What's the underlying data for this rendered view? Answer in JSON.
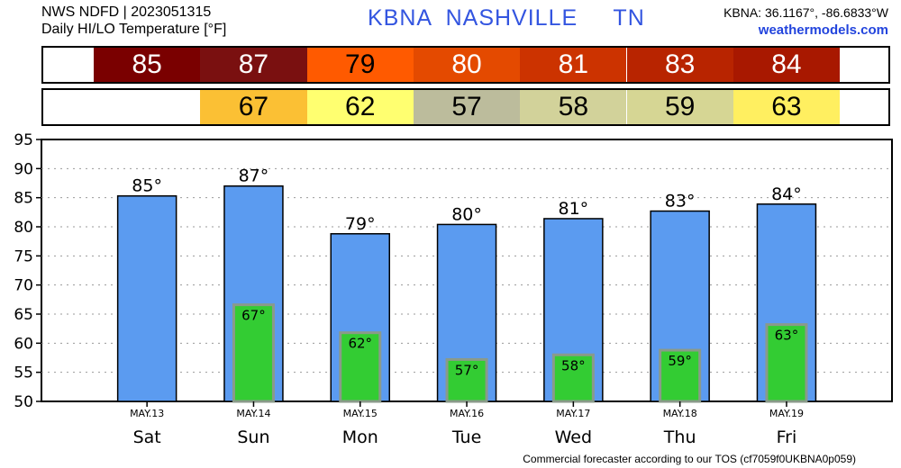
{
  "header": {
    "line1": "NWS NDFD | 2023051315",
    "line2": "Daily HI/LO Temperature [°F]",
    "station": "KBNA  NASHVILLE     TN",
    "coords": "KBNA: 36.1167°, -86.6833°W",
    "site": "weathermodels.com"
  },
  "footer": "Commercial forecaster according to our TOS (cf7059f0UKBNA0p059)",
  "strips": {
    "hi": [
      {
        "value": "85",
        "color": "#7a0000",
        "text_color": "#ffffff"
      },
      {
        "value": "87",
        "color": "#7a1010",
        "text_color": "#ffffff"
      },
      {
        "value": "79",
        "color": "#ff5a00",
        "text_color": "#000000"
      },
      {
        "value": "80",
        "color": "#e44a00",
        "text_color": "#ffffff"
      },
      {
        "value": "81",
        "color": "#cc3300",
        "text_color": "#ffffff"
      },
      {
        "value": "83",
        "color": "#b82400",
        "text_color": "#ffffff"
      },
      {
        "value": "84",
        "color": "#a81800",
        "text_color": "#ffffff"
      }
    ],
    "lo": [
      {
        "value": "67",
        "color": "#fbc034",
        "text_color": "#000000"
      },
      {
        "value": "62",
        "color": "#ffff70",
        "text_color": "#000000"
      },
      {
        "value": "57",
        "color": "#bcbc9c",
        "text_color": "#000000"
      },
      {
        "value": "58",
        "color": "#d2d29a",
        "text_color": "#000000"
      },
      {
        "value": "59",
        "color": "#d6d694",
        "text_color": "#000000"
      },
      {
        "value": "63",
        "color": "#ffef60",
        "text_color": "#000000"
      }
    ]
  },
  "chart_data": {
    "type": "bar",
    "categories": [
      "Sat",
      "Sun",
      "Mon",
      "Tue",
      "Wed",
      "Thu",
      "Fri"
    ],
    "dates": [
      "MAY.13",
      "MAY.14",
      "MAY.15",
      "MAY.16",
      "MAY.17",
      "MAY.18",
      "MAY.19"
    ],
    "series": [
      {
        "values": [
          85.3,
          87,
          78.8,
          80.4,
          81.4,
          82.7,
          83.9
        ],
        "labels": [
          "85°",
          "87°",
          "79°",
          "80°",
          "81°",
          "83°",
          "84°"
        ],
        "color": "#5b9bf0"
      },
      {
        "values": [
          null,
          66.6,
          61.8,
          57.2,
          58,
          58.8,
          63.2
        ],
        "labels": [
          "",
          "67°",
          "62°",
          "57°",
          "58°",
          "59°",
          "63°"
        ],
        "color": "#33cc33"
      }
    ],
    "ylim": [
      50,
      95
    ],
    "yticks": [
      "95",
      "90",
      "85",
      "80",
      "75",
      "70",
      "65",
      "60",
      "55",
      "50"
    ],
    "grid": true
  }
}
